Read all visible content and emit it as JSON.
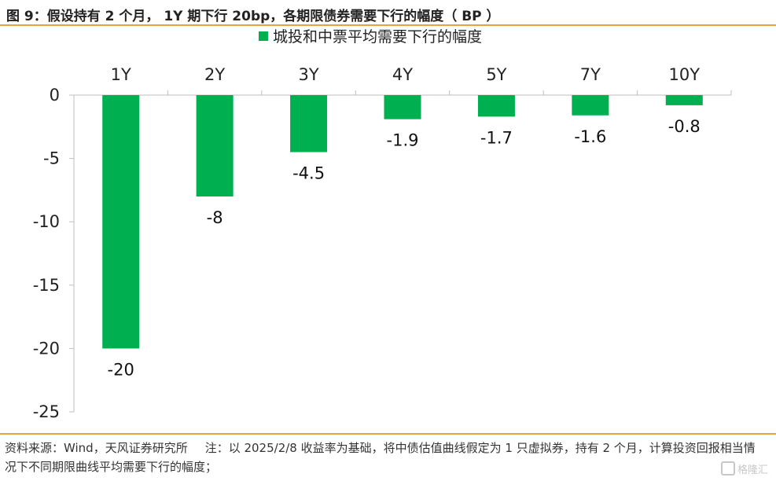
{
  "title": "图 9：假设持有 2 个月， 1Y 期下行 20bp，各期限债券需要下行的幅度（ BP ）",
  "source_note": "资料来源：Wind，天风证券研究所",
  "note": "注：以 2025/2/8 收益率为基础，将中债估值曲线假定为 1 只虚拟券，持有 2 个月，计算投资回报相当情况下不同期限曲线平均需要下行的幅度；",
  "watermark": "格隆汇",
  "colors": {
    "bar": "#00b050",
    "accent_rule": "#e8a33a"
  },
  "chart_data": {
    "type": "bar",
    "categories": [
      "1Y",
      "2Y",
      "3Y",
      "4Y",
      "5Y",
      "7Y",
      "10Y"
    ],
    "series": [
      {
        "name": "城投和中票平均需要下行的幅度",
        "values": [
          -20,
          -8,
          -4.5,
          -1.9,
          -1.7,
          -1.6,
          -0.8
        ]
      }
    ],
    "data_labels": [
      "-20",
      "-8",
      "-4.5",
      "-1.9",
      "-1.7",
      "-1.6",
      "-0.8"
    ],
    "ylim": [
      -25,
      0
    ],
    "yticks": [
      0,
      -5,
      -10,
      -15,
      -20,
      -25
    ],
    "ytick_labels": [
      "0",
      "-5",
      "-10",
      "-15",
      "-20",
      "-25"
    ],
    "grid": false,
    "legend_position": "top-center",
    "category_axis_position": "top",
    "xlabel": "",
    "ylabel": ""
  }
}
